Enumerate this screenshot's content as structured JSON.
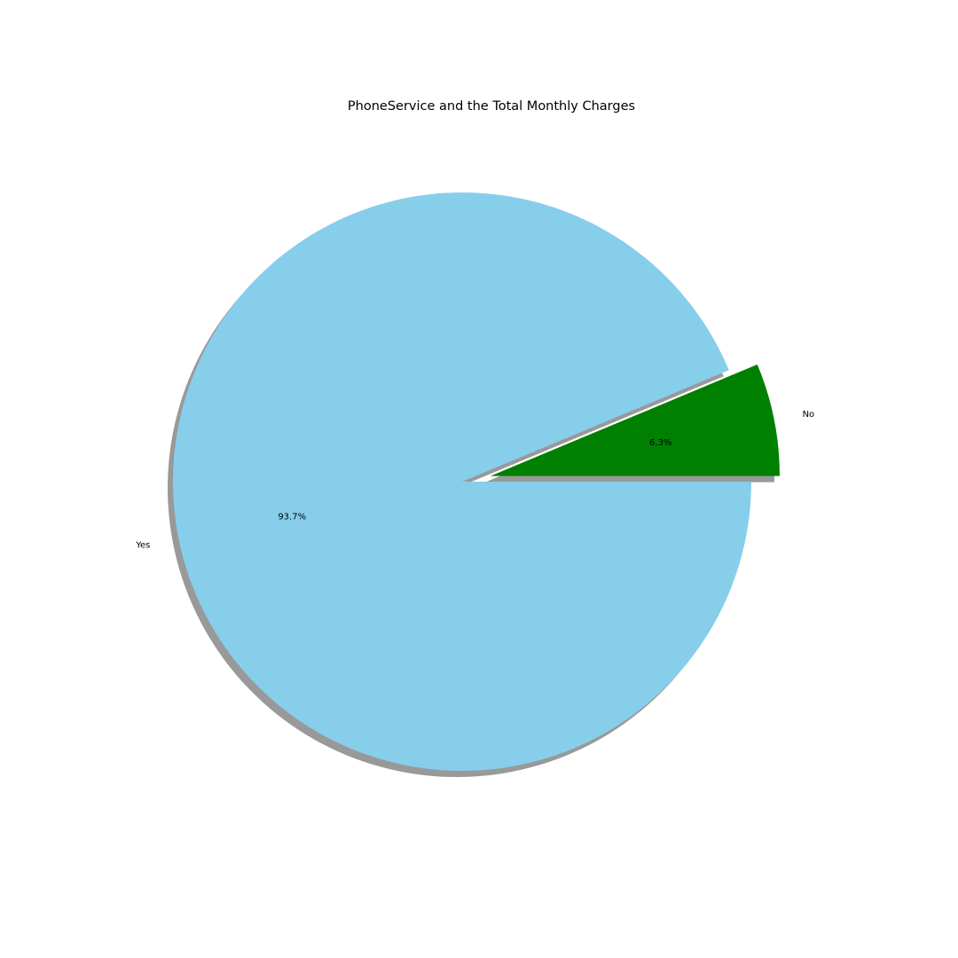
{
  "chart_data": {
    "type": "pie",
    "title": "PhoneService and the Total Monthly Charges",
    "categories": [
      "No",
      "Yes"
    ],
    "values": [
      6.3,
      93.7
    ],
    "percent_labels": [
      "6.3%",
      "93.7%"
    ],
    "colors": [
      "#008000",
      "#87CEEB"
    ],
    "explode": [
      0.1,
      0
    ],
    "start_angle_degrees": 0,
    "shadow": true,
    "legend": "none"
  }
}
